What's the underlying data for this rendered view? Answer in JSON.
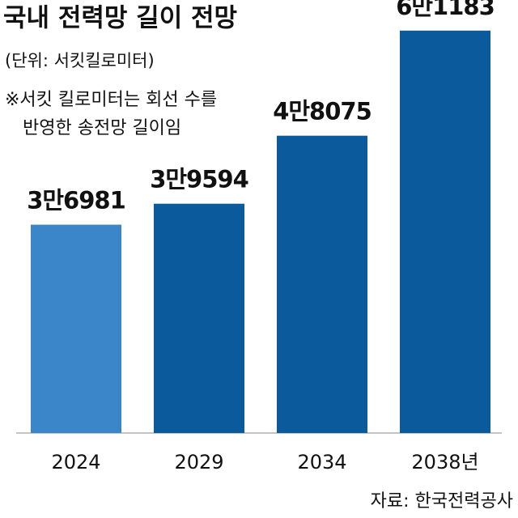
{
  "chart_data": {
    "type": "bar",
    "title": "국내 전력망 길이 전망",
    "subtitle": "(단위: 서킷킬로미터)",
    "note": [
      "※서킷 킬로미터는 회선 수를",
      "반영한 송전망 길이임"
    ],
    "source": "자료: 한국전력공사",
    "categories": [
      "2024",
      "2029",
      "2034",
      "2038년"
    ],
    "values": [
      36981,
      39594,
      48075,
      61183
    ],
    "value_labels": [
      "3만6981",
      "3만9594",
      "4만8075",
      "6만1183"
    ],
    "colors": [
      "#3a86c8",
      "#0b5a9c",
      "#0b5a9c",
      "#0b5a9c"
    ],
    "ylim": [
      11000,
      65000
    ]
  }
}
